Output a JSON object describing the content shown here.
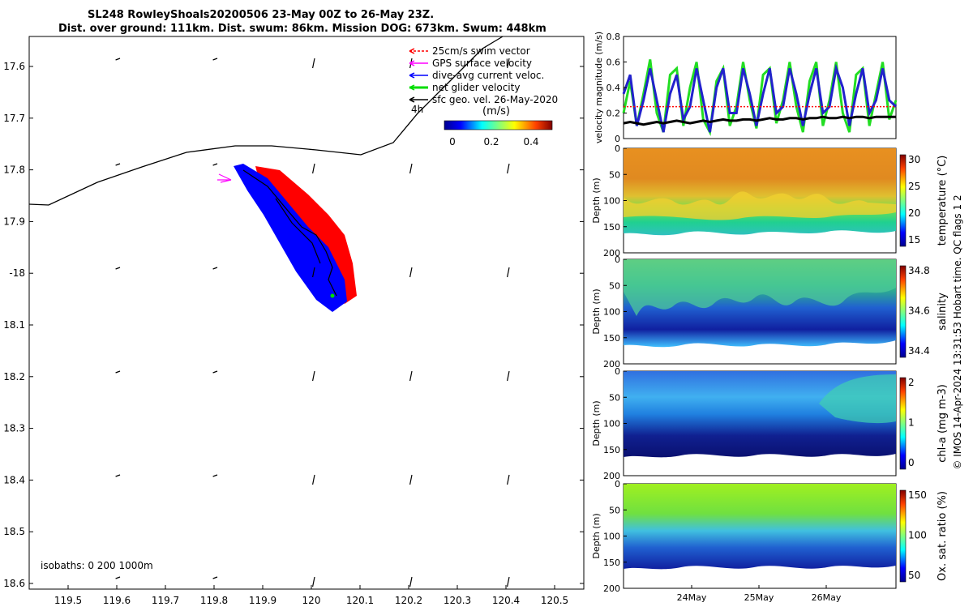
{
  "title": {
    "line1": "SL248 RowleyShoals20200506 23-May 00Z to 26-May 23Z.",
    "line2": "Dist. over ground: 111km. Dist. swum: 86km. Mission DOG: 673km. Swum: 448km"
  },
  "map": {
    "lat_labels": [
      "17.6",
      "17.7",
      "17.8",
      "17.9",
      "-18",
      "18.1",
      "18.2",
      "18.3",
      "18.4",
      "18.5",
      "18.6"
    ],
    "lon_labels": [
      "119.5",
      "119.6",
      "119.7",
      "119.8",
      "119.9",
      "120",
      "120.1",
      "120.2",
      "120.3",
      "120.4",
      "120.5"
    ],
    "legend": [
      {
        "label": "25cm/s swim vector",
        "color": "#ff0000"
      },
      {
        "label": "GPS surface velocity",
        "color": "#ff00ff"
      },
      {
        "label": "dive-avg current veloc.",
        "color": "#0000ff"
      },
      {
        "label": "net glider velocity",
        "color": "#00dd00"
      },
      {
        "label": "sfc geo. vel. 26-May-2020",
        "color": "#000000"
      }
    ],
    "legend_4h": "4h",
    "colorbar_unit": "(m/s)",
    "colorbar_ticks": [
      "0",
      "0.2",
      "0.4"
    ],
    "isobaths": "isobaths: 0   200  1000m"
  },
  "chart_data": [
    {
      "type": "line",
      "ylabel": "velocity magnitude (m/s)",
      "ylim": [
        0,
        0.8
      ],
      "yticks": [
        "0",
        "0.2",
        "0.4",
        "0.6",
        "0.8"
      ],
      "series": [
        {
          "color": "#22dd22",
          "values": [
            0.2,
            0.45,
            0.1,
            0.35,
            0.62,
            0.2,
            0.05,
            0.5,
            0.55,
            0.1,
            0.4,
            0.6,
            0.15,
            0.05,
            0.45,
            0.55,
            0.1,
            0.25,
            0.6,
            0.3,
            0.08,
            0.5,
            0.55,
            0.12,
            0.3,
            0.6,
            0.25,
            0.05,
            0.45,
            0.6,
            0.1,
            0.3,
            0.6,
            0.2,
            0.05,
            0.5,
            0.55,
            0.1,
            0.35,
            0.6,
            0.15,
            0.3
          ]
        },
        {
          "color": "#2222cc",
          "values": [
            0.35,
            0.5,
            0.1,
            0.3,
            0.55,
            0.3,
            0.05,
            0.35,
            0.5,
            0.15,
            0.25,
            0.55,
            0.3,
            0.05,
            0.4,
            0.55,
            0.2,
            0.2,
            0.55,
            0.35,
            0.1,
            0.35,
            0.55,
            0.2,
            0.25,
            0.55,
            0.35,
            0.1,
            0.35,
            0.55,
            0.2,
            0.25,
            0.55,
            0.4,
            0.1,
            0.35,
            0.55,
            0.2,
            0.3,
            0.55,
            0.3,
            0.25
          ]
        },
        {
          "color": "#000000",
          "values": [
            0.12,
            0.13,
            0.12,
            0.11,
            0.12,
            0.13,
            0.12,
            0.13,
            0.14,
            0.13,
            0.12,
            0.13,
            0.14,
            0.13,
            0.14,
            0.15,
            0.14,
            0.14,
            0.15,
            0.15,
            0.14,
            0.15,
            0.16,
            0.15,
            0.15,
            0.16,
            0.16,
            0.15,
            0.16,
            0.16,
            0.17,
            0.16,
            0.16,
            0.17,
            0.16,
            0.17,
            0.17,
            0.16,
            0.17,
            0.17,
            0.17,
            0.17
          ]
        },
        {
          "color": "#ff0000",
          "values": [
            0.25,
            0.25,
            0.25,
            0.25,
            0.25,
            0.25,
            0.25,
            0.25,
            0.25,
            0.25,
            0.25,
            0.25,
            0.25,
            0.25,
            0.25,
            0.25,
            0.25,
            0.25,
            0.25,
            0.25,
            0.25,
            0.25,
            0.25,
            0.25,
            0.25,
            0.25,
            0.25,
            0.25,
            0.25,
            0.25,
            0.25,
            0.25,
            0.25,
            0.25,
            0.25,
            0.25,
            0.25,
            0.25,
            0.25,
            0.25,
            0.25,
            0.25
          ]
        }
      ]
    },
    {
      "type": "heatmap",
      "ylabel": "Depth (m)",
      "yticks": [
        "0",
        "50",
        "100",
        "150",
        "200"
      ],
      "cbar_label": "temperature (°C)",
      "cbar_ticks": [
        "30",
        "25",
        "20",
        "15"
      ]
    },
    {
      "type": "heatmap",
      "ylabel": "Depth (m)",
      "yticks": [
        "0",
        "50",
        "100",
        "150",
        "200"
      ],
      "cbar_label": "salinity",
      "cbar_ticks": [
        "34.8",
        "34.6",
        "34.4"
      ]
    },
    {
      "type": "heatmap",
      "ylabel": "Depth (m)",
      "yticks": [
        "0",
        "50",
        "100",
        "150",
        "200"
      ],
      "cbar_label": "chl-a (mg m-3)",
      "cbar_ticks": [
        "2",
        "1",
        "0"
      ]
    },
    {
      "type": "heatmap",
      "ylabel": "Depth (m)",
      "yticks": [
        "0",
        "50",
        "100",
        "150",
        "200"
      ],
      "cbar_label": "Ox. sat. ratio (%)",
      "cbar_ticks": [
        "150",
        "100",
        "50"
      ]
    }
  ],
  "xticks_time": [
    "24May",
    "25May",
    "26May"
  ],
  "credit": "© IMOS 14-Apr-2024 13:31:53 Hobart time. QC flags 1  2"
}
